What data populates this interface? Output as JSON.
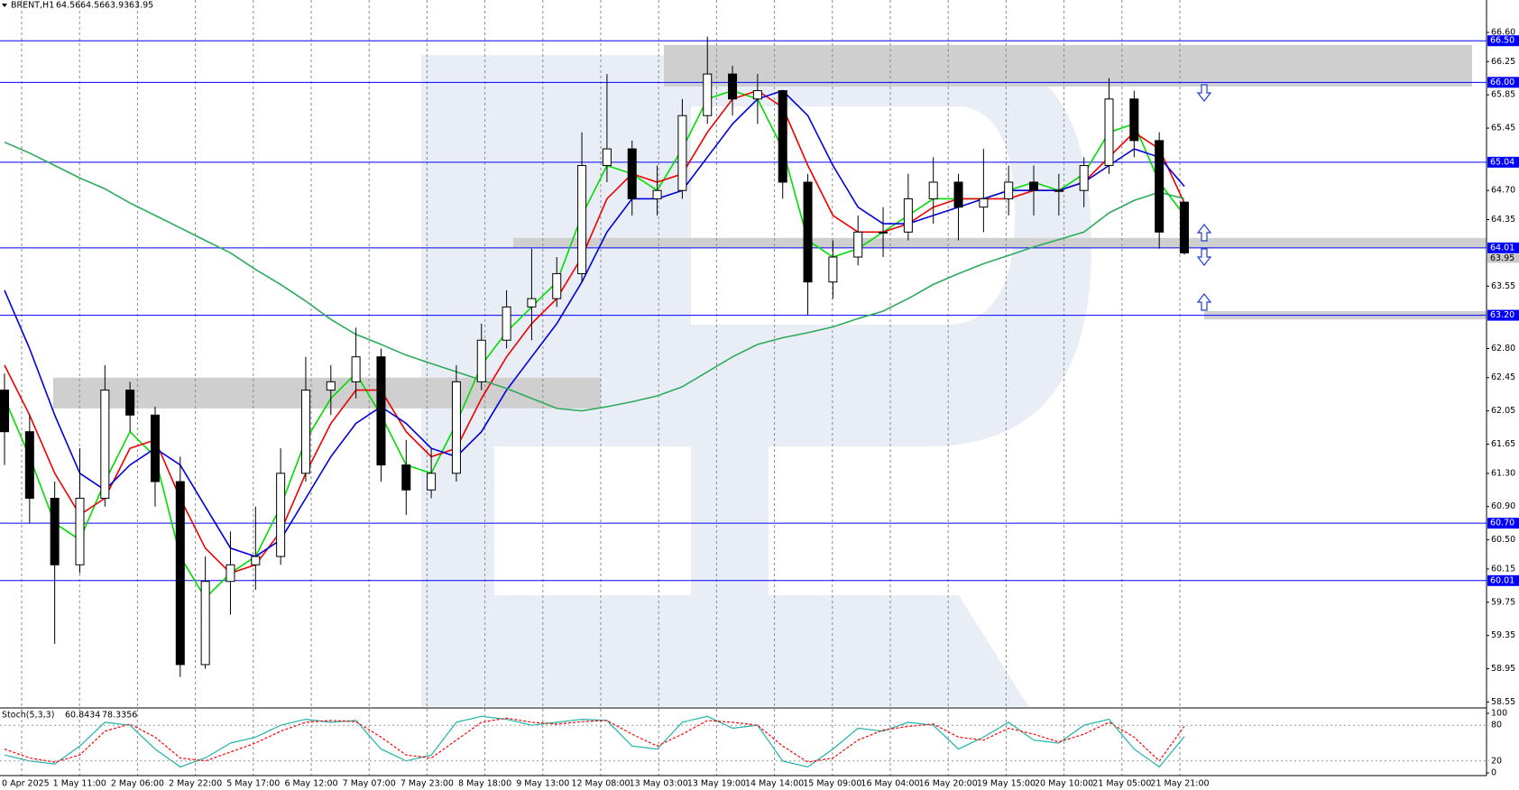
{
  "chart_data": [
    {
      "type": "candlestick",
      "title": "BRENT,H1",
      "x_labels": [
        "0 Apr 2025",
        "1 May 11:00",
        "2 May 06:00",
        "2 May 22:00",
        "5 May 17:00",
        "6 May 12:00",
        "7 May 07:00",
        "7 May 23:00",
        "8 May 18:00",
        "9 May 13:00",
        "12 May 08:00",
        "13 May 03:00",
        "13 May 19:00",
        "14 May 14:00",
        "15 May 09:00",
        "16 May 04:00",
        "16 May 20:00",
        "19 May 15:00",
        "20 May 10:00",
        "21 May 05:00",
        "21 May 21:00"
      ],
      "ohlc": {
        "open": [
          62.3,
          61.8,
          61.0,
          60.2,
          61.0,
          62.3,
          62.0,
          61.2,
          59.0,
          60.0,
          60.2,
          60.3,
          61.3,
          62.3,
          62.4,
          62.7,
          61.4,
          61.1,
          61.3,
          62.4,
          62.9,
          63.3,
          63.4,
          63.7,
          65.0,
          65.2,
          64.6,
          64.7,
          65.6,
          66.1,
          65.8,
          65.9,
          64.8,
          63.6,
          63.9,
          64.2,
          64.2,
          64.6,
          64.8,
          64.5,
          64.6,
          64.8,
          64.7,
          64.7,
          65.0,
          65.8,
          65.3,
          64.56
        ],
        "high": [
          62.5,
          62.0,
          61.2,
          61.6,
          62.6,
          62.4,
          62.1,
          61.5,
          60.3,
          60.6,
          60.9,
          61.6,
          62.7,
          62.6,
          63.05,
          62.8,
          61.7,
          61.6,
          62.6,
          63.1,
          63.5,
          64.0,
          63.9,
          65.4,
          66.1,
          65.3,
          65.0,
          65.8,
          66.55,
          66.2,
          66.1,
          65.9,
          64.9,
          64.1,
          64.4,
          64.5,
          64.9,
          65.1,
          64.9,
          65.2,
          65.0,
          65.0,
          64.9,
          65.1,
          66.05,
          65.9,
          65.4,
          64.56
        ],
        "low": [
          61.4,
          60.7,
          59.25,
          60.1,
          60.9,
          61.8,
          60.9,
          58.85,
          58.95,
          59.6,
          59.9,
          60.2,
          61.2,
          62.0,
          62.2,
          61.2,
          60.8,
          61.0,
          61.2,
          62.3,
          62.8,
          62.9,
          63.3,
          63.6,
          64.8,
          64.4,
          64.4,
          64.6,
          65.5,
          65.6,
          65.5,
          64.6,
          63.2,
          63.4,
          63.8,
          63.9,
          64.1,
          64.3,
          64.1,
          64.2,
          64.4,
          64.4,
          64.4,
          64.5,
          64.9,
          65.1,
          64.0,
          63.93
        ],
        "close": [
          61.8,
          61.0,
          60.2,
          61.0,
          62.3,
          62.0,
          61.2,
          59.0,
          60.0,
          60.2,
          60.3,
          61.3,
          62.3,
          62.4,
          62.7,
          61.4,
          61.1,
          61.3,
          62.4,
          62.9,
          63.3,
          63.4,
          63.7,
          65.0,
          65.2,
          64.6,
          64.7,
          65.6,
          66.1,
          65.8,
          65.9,
          64.8,
          63.6,
          63.9,
          64.2,
          64.2,
          64.6,
          64.8,
          64.5,
          64.6,
          64.8,
          64.7,
          64.7,
          65.0,
          65.8,
          65.3,
          64.2,
          63.95
        ]
      },
      "series": [
        {
          "color": "#00dd00",
          "values": [
            62.2,
            61.5,
            60.7,
            60.5,
            61.2,
            61.8,
            61.5,
            60.3,
            59.8,
            60.1,
            60.3,
            60.9,
            61.7,
            62.2,
            62.5,
            62.0,
            61.4,
            61.3,
            61.9,
            62.6,
            63.0,
            63.3,
            63.6,
            64.4,
            65.0,
            64.9,
            64.7,
            65.2,
            65.8,
            65.9,
            65.8,
            65.2,
            64.1,
            63.9,
            64.0,
            64.2,
            64.4,
            64.6,
            64.6,
            64.6,
            64.7,
            64.8,
            64.7,
            64.9,
            65.4,
            65.5,
            64.8,
            64.4
          ]
        },
        {
          "color": "#ee0000",
          "values": [
            62.6,
            62.0,
            61.3,
            60.8,
            61.0,
            61.6,
            61.7,
            61.0,
            60.4,
            60.1,
            60.2,
            60.6,
            61.3,
            61.9,
            62.3,
            62.3,
            61.8,
            61.5,
            61.6,
            62.2,
            62.7,
            63.1,
            63.4,
            63.9,
            64.6,
            64.9,
            64.8,
            64.9,
            65.4,
            65.8,
            65.9,
            65.7,
            65.0,
            64.4,
            64.2,
            64.2,
            64.3,
            64.5,
            64.6,
            64.6,
            64.6,
            64.7,
            64.7,
            64.8,
            65.1,
            65.4,
            65.2,
            64.55
          ]
        },
        {
          "color": "#0000dd",
          "values": [
            63.5,
            62.8,
            62.0,
            61.3,
            61.1,
            61.4,
            61.6,
            61.4,
            60.9,
            60.4,
            60.3,
            60.5,
            61.0,
            61.5,
            61.9,
            62.1,
            61.9,
            61.6,
            61.5,
            61.8,
            62.3,
            62.7,
            63.1,
            63.6,
            64.2,
            64.6,
            64.6,
            64.7,
            65.1,
            65.5,
            65.8,
            65.9,
            65.6,
            65.0,
            64.5,
            64.3,
            64.3,
            64.4,
            64.5,
            64.6,
            64.7,
            64.7,
            64.7,
            64.8,
            65.0,
            65.2,
            65.1,
            64.75
          ]
        },
        {
          "color": "#2eaa5c",
          "values": [
            65.28,
            65.15,
            65.0,
            64.85,
            64.72,
            64.55,
            64.4,
            64.25,
            64.1,
            63.95,
            63.75,
            63.57,
            63.37,
            63.15,
            62.97,
            62.85,
            62.72,
            62.62,
            62.52,
            62.42,
            62.32,
            62.2,
            62.08,
            62.05,
            62.1,
            62.16,
            62.23,
            62.34,
            62.52,
            62.7,
            62.85,
            62.93,
            62.99,
            63.06,
            63.16,
            63.25,
            63.4,
            63.57,
            63.7,
            63.82,
            63.92,
            64.02,
            64.11,
            64.2,
            64.43,
            64.58,
            64.68,
            64.6
          ]
        }
      ],
      "ylim": [
        58.49,
        66.99
      ],
      "yticks": [
        58.55,
        58.95,
        59.35,
        59.75,
        60.15,
        {
          "value": 60.5,
          "label": "60.50"
        },
        {
          "value": 60.9,
          "label": "60.90"
        },
        {
          "value": 61.3,
          "label": "61.30"
        },
        61.65,
        62.05,
        62.45,
        {
          "value": 62.8,
          "label": "62.80"
        },
        63.55,
        64.35,
        {
          "value": 64.7,
          "label": "64.70"
        },
        65.45,
        65.85,
        66.25,
        {
          "value": 66.6,
          "label": "66.60"
        }
      ],
      "levels": [
        {
          "value": 66.5,
          "label": "66.50"
        },
        {
          "value": 66.0,
          "label": "66.00"
        },
        {
          "value": 65.04,
          "label": "65.04"
        },
        {
          "value": 64.01,
          "label": "64.01"
        },
        {
          "value": 63.2,
          "label": "63.20"
        },
        {
          "value": 60.7,
          "label": "60.70"
        },
        {
          "value": 60.01,
          "label": "60.01"
        }
      ],
      "level_color": "#0000ff",
      "zones": [
        [
          66.45,
          65.95
        ],
        [
          64.13,
          64.01
        ],
        [
          62.45,
          62.08
        ],
        [
          63.25,
          63.15
        ]
      ],
      "zone_color": "#cfcfcf"
    },
    {
      "type": "line",
      "title": "Stoch(5,3,3)",
      "series": [
        {
          "color": "#20b2aa",
          "values": [
            30,
            20,
            15,
            45,
            85,
            80,
            40,
            10,
            25,
            50,
            60,
            80,
            90,
            85,
            88,
            40,
            20,
            30,
            85,
            95,
            90,
            80,
            85,
            90,
            88,
            45,
            40,
            85,
            95,
            75,
            80,
            20,
            10,
            40,
            75,
            70,
            85,
            80,
            40,
            60,
            85,
            55,
            50,
            80,
            90,
            40,
            10,
            60.8434
          ]
        },
        {
          "color": "#ff0000",
          "dashed": true,
          "values": [
            40,
            25,
            18,
            30,
            70,
            82,
            60,
            25,
            20,
            35,
            50,
            70,
            85,
            88,
            86,
            60,
            30,
            25,
            55,
            85,
            92,
            85,
            82,
            86,
            88,
            65,
            45,
            65,
            88,
            85,
            80,
            45,
            18,
            25,
            55,
            72,
            78,
            82,
            60,
            55,
            75,
            65,
            52,
            65,
            85,
            60,
            20,
            78.3356
          ]
        }
      ],
      "ylim": [
        0,
        100
      ],
      "yticks": [
        0,
        20,
        80,
        100
      ]
    }
  ]
}
